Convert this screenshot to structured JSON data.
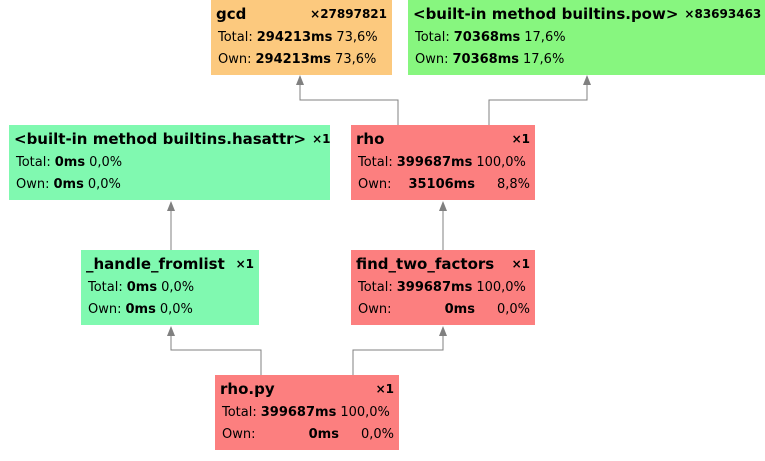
{
  "colors": {
    "low": "#80f9b0",
    "mid": "#fcc97e",
    "high": "#fc7f7f",
    "pow": "#87f67f",
    "edge": "#808080"
  },
  "nodes": {
    "gcd": {
      "name": "gcd",
      "calls": "×27897821",
      "total_label": "Total:",
      "total_value": "294213ms",
      "total_pct": "73,6%",
      "own_label": "Own:",
      "own_value": "294213ms",
      "own_pct": "73,6%"
    },
    "pow": {
      "name": "<built-in method builtins.pow>",
      "calls": "×83693463",
      "total_label": "Total:",
      "total_value": "70368ms",
      "total_pct": "17,6%",
      "own_label": "Own:",
      "own_value": "70368ms",
      "own_pct": "17,6%"
    },
    "hasattr": {
      "name": "<built-in method builtins.hasattr>",
      "calls": "×1",
      "total_label": "Total:",
      "total_value": "0ms",
      "total_pct": "0,0%",
      "own_label": "Own:",
      "own_value": "0ms",
      "own_pct": "0,0%"
    },
    "rho": {
      "name": "rho",
      "calls": "×1",
      "total_label": "Total:",
      "total_value": "399687ms",
      "total_pct": "100,0%",
      "own_label": "Own:",
      "own_value": "35106ms",
      "own_pct": "8,8%"
    },
    "fromlist": {
      "name": "_handle_fromlist",
      "calls": "×1",
      "total_label": "Total:",
      "total_value": "0ms",
      "total_pct": "0,0%",
      "own_label": "Own:",
      "own_value": "0ms",
      "own_pct": "0,0%"
    },
    "ftf": {
      "name": "find_two_factors",
      "calls": "×1",
      "total_label": "Total:",
      "total_value": "399687ms",
      "total_pct": "100,0%",
      "own_label": "Own:",
      "own_value": "0ms",
      "own_pct": "0,0%"
    },
    "rhopy": {
      "name": "rho.py",
      "calls": "×1",
      "total_label": "Total:",
      "total_value": "399687ms",
      "total_pct": "100,0%",
      "own_label": "Own:",
      "own_value": "0ms",
      "own_pct": "0,0%"
    }
  },
  "edges": [
    {
      "from": "rhopy",
      "to": "fromlist"
    },
    {
      "from": "rhopy",
      "to": "ftf"
    },
    {
      "from": "fromlist",
      "to": "hasattr"
    },
    {
      "from": "ftf",
      "to": "rho"
    },
    {
      "from": "rho",
      "to": "gcd"
    },
    {
      "from": "rho",
      "to": "pow"
    }
  ]
}
